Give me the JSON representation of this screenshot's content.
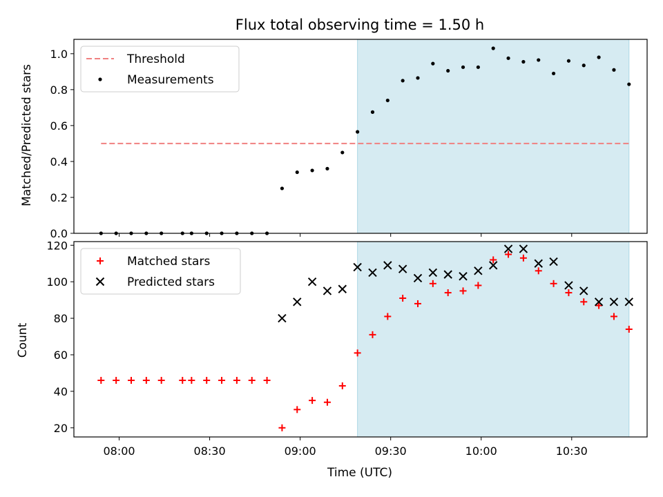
{
  "chart_data": [
    {
      "type": "scatter",
      "title": "Flux total observing time = 1.50 h",
      "ylabel": "Matched/Predicted stars",
      "xlabel": "",
      "ylim": [
        0,
        1.08
      ],
      "yticks": [
        "0.0",
        "0.2",
        "0.4",
        "0.6",
        "0.8",
        "1.0"
      ],
      "xlim": [
        "07:45",
        "10:55"
      ],
      "shaded_region": [
        "09:19",
        "10:49"
      ],
      "shade_color": "#add8e6",
      "legend": "top-left",
      "threshold": {
        "name": "Threshold",
        "y": 0.5,
        "x_start": "07:54",
        "x_end": "10:49",
        "color": "#f08080"
      },
      "series": [
        {
          "name": "Measurements",
          "color": "#000000",
          "x": [
            "07:54",
            "07:59",
            "08:04",
            "08:09",
            "08:14",
            "08:21",
            "08:24",
            "08:29",
            "08:34",
            "08:39",
            "08:44",
            "08:49",
            "08:54",
            "08:59",
            "09:04",
            "09:09",
            "09:14",
            "09:19",
            "09:24",
            "09:29",
            "09:34",
            "09:39",
            "09:44",
            "09:49",
            "09:54",
            "09:59",
            "10:04",
            "10:09",
            "10:14",
            "10:19",
            "10:24",
            "10:29",
            "10:34",
            "10:39",
            "10:44",
            "10:49"
          ],
          "y": [
            0.0,
            0.0,
            0.0,
            0.0,
            0.0,
            0.0,
            0.0,
            0.0,
            0.0,
            0.0,
            0.0,
            0.0,
            0.25,
            0.34,
            0.35,
            0.36,
            0.45,
            0.565,
            0.675,
            0.74,
            0.85,
            0.865,
            0.945,
            0.905,
            0.925,
            0.925,
            1.03,
            0.975,
            0.955,
            0.965,
            0.89,
            0.96,
            0.935,
            0.98,
            0.91,
            0.83
          ]
        }
      ]
    },
    {
      "type": "scatter",
      "title": "",
      "xlabel": "Time (UTC)",
      "ylabel": "Count",
      "ylim": [
        15,
        122
      ],
      "yticks": [
        "20",
        "40",
        "60",
        "80",
        "100",
        "120"
      ],
      "xlim": [
        "07:45",
        "10:55"
      ],
      "xticks": [
        "08:00",
        "08:30",
        "09:00",
        "09:30",
        "10:00",
        "10:30"
      ],
      "shaded_region": [
        "09:19",
        "10:49"
      ],
      "shade_color": "#add8e6",
      "legend": "top-left",
      "series": [
        {
          "name": "Matched stars",
          "marker": "plus",
          "color": "#ff0000",
          "x": [
            "07:54",
            "07:59",
            "08:04",
            "08:09",
            "08:14",
            "08:21",
            "08:24",
            "08:29",
            "08:34",
            "08:39",
            "08:44",
            "08:49",
            "08:54",
            "08:59",
            "09:04",
            "09:09",
            "09:14",
            "09:19",
            "09:24",
            "09:29",
            "09:34",
            "09:39",
            "09:44",
            "09:49",
            "09:54",
            "09:59",
            "10:04",
            "10:09",
            "10:14",
            "10:19",
            "10:24",
            "10:29",
            "10:34",
            "10:39",
            "10:44",
            "10:49"
          ],
          "y": [
            46,
            46,
            46,
            46,
            46,
            46,
            46,
            46,
            46,
            46,
            46,
            46,
            20,
            30,
            35,
            34,
            43,
            61,
            71,
            81,
            91,
            88,
            99,
            94,
            95,
            98,
            112,
            115,
            113,
            106,
            99,
            94,
            89,
            87,
            81,
            74
          ]
        },
        {
          "name": "Predicted stars",
          "marker": "x",
          "color": "#000000",
          "x": [
            "08:54",
            "08:59",
            "09:04",
            "09:09",
            "09:14",
            "09:19",
            "09:24",
            "09:29",
            "09:34",
            "09:39",
            "09:44",
            "09:49",
            "09:54",
            "09:59",
            "10:04",
            "10:09",
            "10:14",
            "10:19",
            "10:24",
            "10:29",
            "10:34",
            "10:39",
            "10:44",
            "10:49"
          ],
          "y": [
            80,
            89,
            100,
            95,
            96,
            108,
            105,
            109,
            107,
            102,
            105,
            104,
            103,
            106,
            109,
            118,
            118,
            110,
            111,
            98,
            95,
            89,
            89,
            89
          ]
        }
      ]
    }
  ]
}
